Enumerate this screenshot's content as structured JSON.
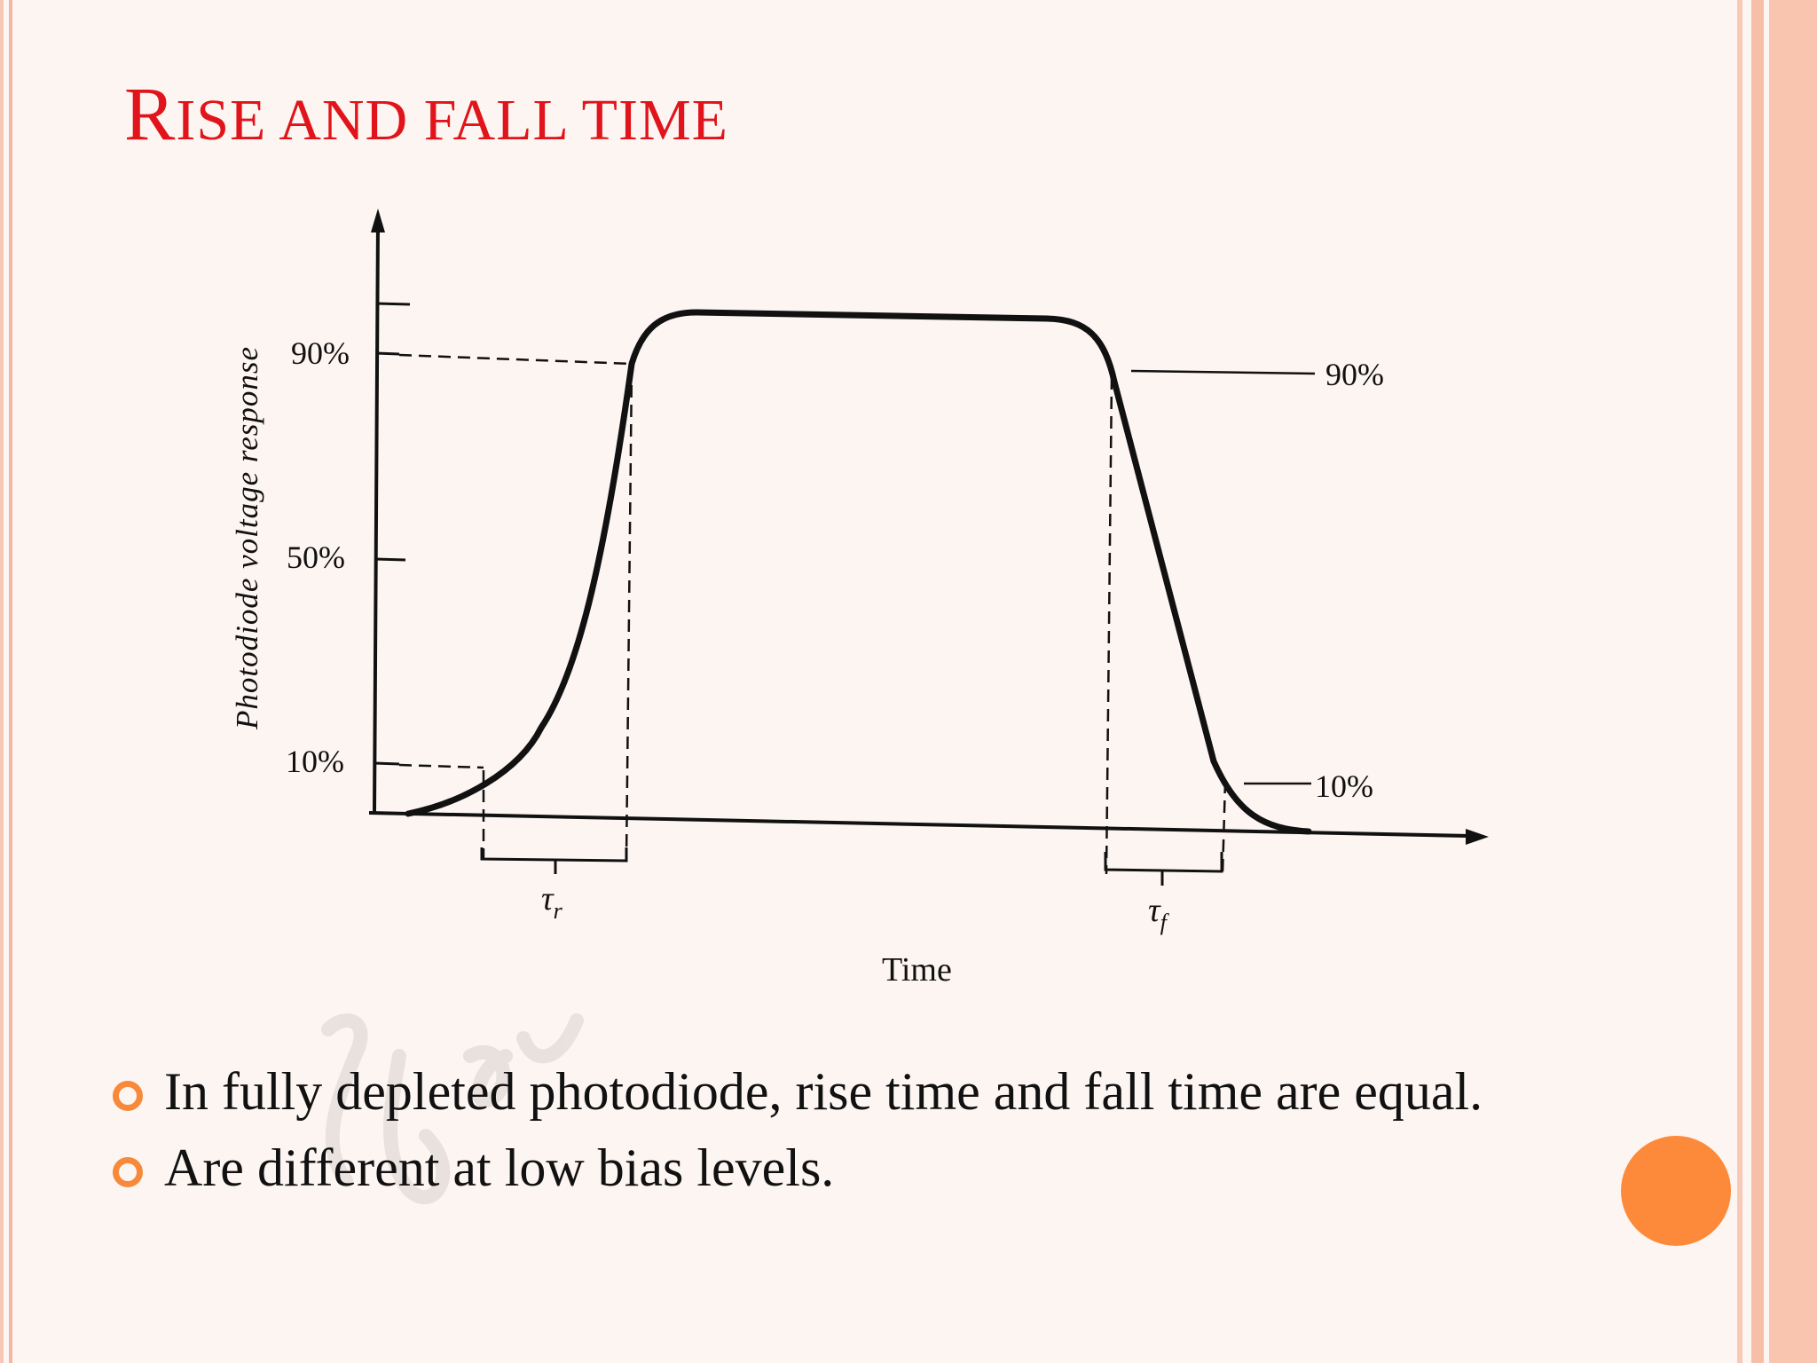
{
  "slide": {
    "title_initial": "R",
    "title_rest": "ISE AND FALL TIME"
  },
  "diagram": {
    "y_axis_label": "Photodiode voltage response",
    "x_axis_label": "Time",
    "left_levels": [
      "90%",
      "50%",
      "10%"
    ],
    "right_levels": [
      "90%",
      "10%"
    ],
    "rise_symbol": "τ",
    "rise_subscript": "r",
    "fall_symbol": "τ",
    "fall_subscript": "f"
  },
  "bullets": [
    "In fully depleted photodiode, rise time and fall time are equal.",
    "Are different at low bias levels."
  ],
  "colors": {
    "title": "#e0141a",
    "bullet_marker": "#f7893a",
    "accent_circle": "#fd8a3b",
    "border": "#f7c0a8"
  }
}
